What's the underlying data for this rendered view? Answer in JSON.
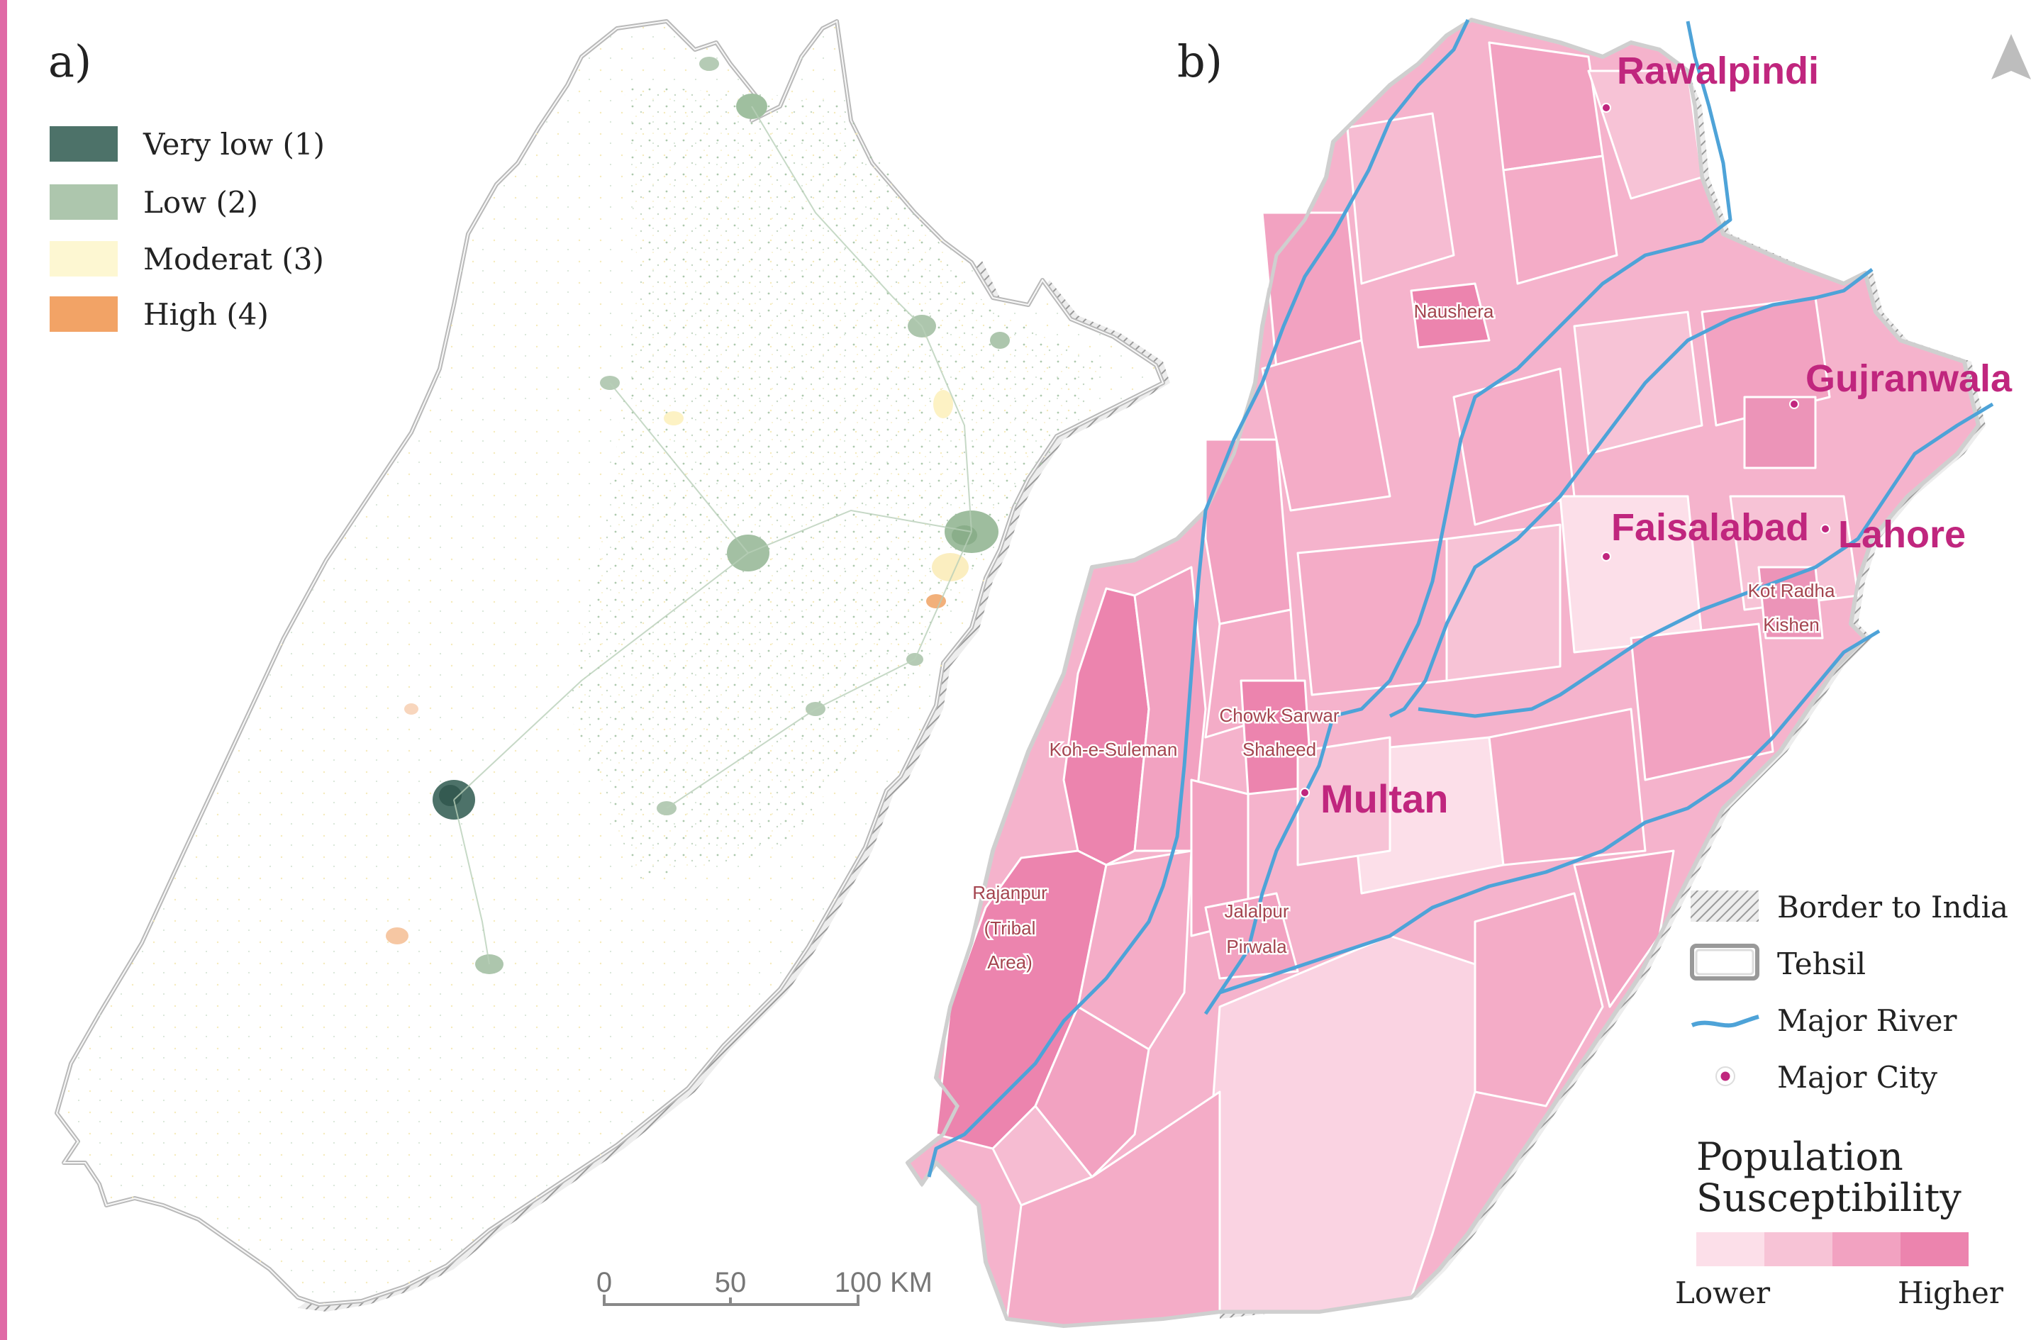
{
  "panel_a": {
    "label": "a)",
    "legend": [
      {
        "label": "Very low (1)",
        "color": "#4d7269"
      },
      {
        "label": "Low (2)",
        "color": "#adc6ad"
      },
      {
        "label": "Moderat (3)",
        "color": "#fdf7d2"
      },
      {
        "label": "High (4)",
        "color": "#f2a366"
      }
    ],
    "scale_bar": {
      "ticks": [
        "0",
        "50",
        "100"
      ],
      "unit": "KM"
    }
  },
  "panel_b": {
    "label": "b)",
    "major_cities": [
      "Rawalpindi",
      "Gujranwala",
      "Faisalabad",
      "Lahore",
      "Multan"
    ],
    "tehsil_labels": {
      "naushera": "Naushera",
      "kot_radha_1": "Kot Radha",
      "kot_radha_2": "Kishen",
      "chowk_1": "Chowk Sarwar",
      "chowk_2": "Shaheed",
      "koh": "Koh-e-Suleman",
      "rajanpur_1": "Rajanpur",
      "rajanpur_2": "(Tribal",
      "rajanpur_3": "Area)",
      "jalalpur_1": "Jalalpur",
      "jalalpur_2": "Pirwala"
    },
    "legend": {
      "border": "Border to India",
      "tehsil": "Tehsil",
      "river": "Major River",
      "city": "Major City"
    },
    "ramp": {
      "title_1": "Population",
      "title_2": "Susceptibility",
      "low": "Lower",
      "high": "Higher",
      "colors": [
        "#fcdfe9",
        "#f7c3d6",
        "#f2a2c1",
        "#ec84ae"
      ]
    },
    "colors": {
      "city": "#c0267e",
      "river": "#4ea3d8",
      "label": "#a4444f",
      "frame": "#e06aa6"
    }
  }
}
